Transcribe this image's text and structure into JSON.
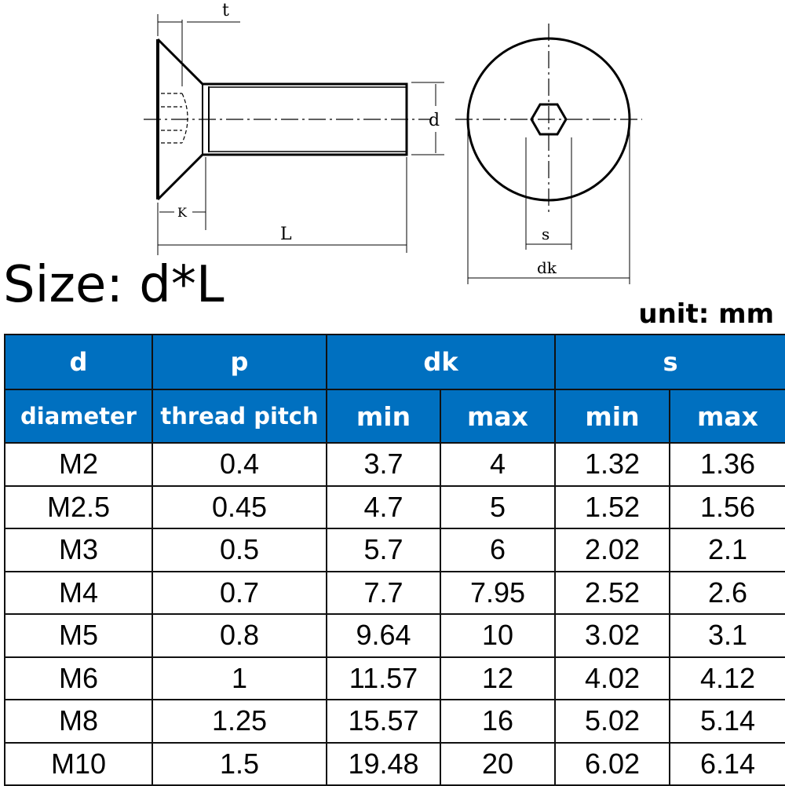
{
  "diagram": {
    "labels": {
      "t": "t",
      "d": "d",
      "k": "K",
      "l": "L",
      "s": "s",
      "dk": "dk"
    }
  },
  "title": "Size: d*L",
  "unit": "unit: mm",
  "header_color": "#0070c0",
  "table": {
    "header": {
      "d": "d",
      "d_label": "diameter",
      "p": "p",
      "p_label": "thread pitch",
      "dk": "dk",
      "s": "s",
      "dk_min": "min",
      "dk_max": "max",
      "s_min": "min",
      "s_max": "max"
    },
    "rows": [
      [
        "M2",
        "0.4",
        "3.7",
        "4",
        "1.32",
        "1.36"
      ],
      [
        "M2.5",
        "0.45",
        "4.7",
        "5",
        "1.52",
        "1.56"
      ],
      [
        "M3",
        "0.5",
        "5.7",
        "6",
        "2.02",
        "2.1"
      ],
      [
        "M4",
        "0.7",
        "7.7",
        "7.95",
        "2.52",
        "2.6"
      ],
      [
        "M5",
        "0.8",
        "9.64",
        "10",
        "3.02",
        "3.1"
      ],
      [
        "M6",
        "1",
        "11.57",
        "12",
        "4.02",
        "4.12"
      ],
      [
        "M8",
        "1.25",
        "15.57",
        "16",
        "5.02",
        "5.14"
      ],
      [
        "M10",
        "1.5",
        "19.48",
        "20",
        "6.02",
        "6.14"
      ]
    ]
  }
}
